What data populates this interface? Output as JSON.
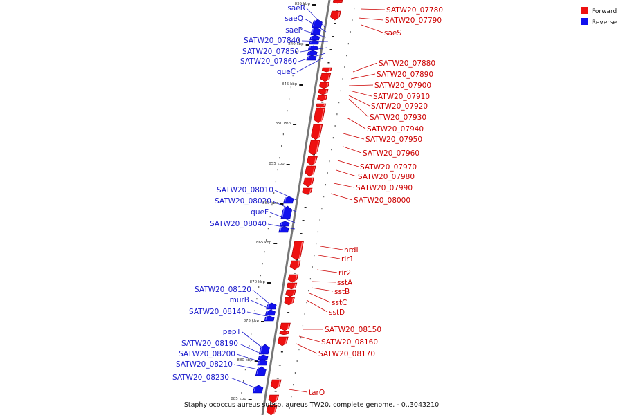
{
  "colors": {
    "forward": "#ee1111",
    "reverse": "#1111ee",
    "forward_text": "#cc0000",
    "reverse_text": "#1a1acc",
    "backbone": "#777777"
  },
  "legend": [
    {
      "label": "Forward",
      "strand": "forward"
    },
    {
      "label": "Reverse",
      "strand": "reverse"
    }
  ],
  "footer": "Staphylococcus aureus subsp. aureus TW20, complete genome. - 0..3043210",
  "ticks": [
    "835 kbp",
    "840 kbp",
    "845 kbp",
    "850 kbp",
    "855 kbp",
    "860 kbp",
    "865 kbp",
    "870 kbp",
    "875 kbp",
    "880 kbp",
    "885 kbp"
  ],
  "reverse_labels": [
    "saeR",
    "saeQ",
    "saeP",
    "SATW20_07840",
    "SATW20_07850",
    "SATW20_07860",
    "queC",
    "SATW20_08010",
    "SATW20_08020",
    "queF",
    "SATW20_08040",
    "SATW20_08120",
    "murB",
    "SATW20_08140",
    "pepT",
    "SATW20_08190",
    "SATW20_08200",
    "SATW20_08210",
    "SATW20_08230"
  ],
  "forward_labels": [
    "SATW20_07780",
    "SATW20_07790",
    "saeS",
    "SATW20_07880",
    "SATW20_07890",
    "SATW20_07900",
    "SATW20_07910",
    "SATW20_07920",
    "SATW20_07930",
    "SATW20_07940",
    "SATW20_07950",
    "SATW20_07960",
    "SATW20_07970",
    "SATW20_07980",
    "SATW20_07990",
    "SATW20_08000",
    "nrdI",
    "rir1",
    "rir2",
    "sstA",
    "sstB",
    "sstC",
    "sstD",
    "SATW20_08150",
    "SATW20_08160",
    "SATW20_08170",
    "tarO"
  ]
}
